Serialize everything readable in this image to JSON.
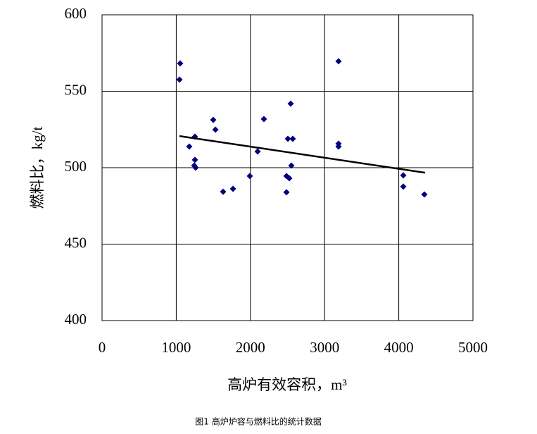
{
  "chart_data": {
    "type": "scatter",
    "x_label": "高炉有效容积，m³",
    "y_label": "燃料比，kg/t",
    "caption": "图1  高炉炉容与燃料比的统计数据",
    "series": [
      {
        "color": "#000080",
        "x": [
          1053,
          1044,
          1252,
          1176,
          1252,
          1243,
          1262,
          1499,
          1528,
          1632,
          1765,
          1992,
          2097,
          2182,
          2543,
          2505,
          2571,
          2552,
          2486,
          2524,
          2486,
          3188,
          3188,
          3188,
          4061,
          4061,
          4345
        ],
        "values": [
          568.2,
          557.6,
          520.3,
          513.8,
          505.1,
          501.4,
          500.0,
          531.3,
          524.9,
          484.3,
          486.2,
          494.5,
          510.6,
          531.8,
          541.9,
          518.9,
          518.9,
          501.4,
          494.5,
          493.1,
          483.9,
          569.6,
          515.7,
          513.8,
          495.0,
          487.6,
          482.5
        ]
      }
    ],
    "trendline": {
      "color": "#000000",
      "x": [
        1044,
        4355
      ],
      "values": [
        520.7,
        496.7
      ]
    },
    "xlim": [
      0,
      5000
    ],
    "xticks": [
      0,
      1000,
      2000,
      3000,
      4000,
      5000
    ],
    "ylim": [
      400,
      600
    ],
    "yticks": [
      400,
      450,
      500,
      550,
      600
    ],
    "grid": true
  }
}
